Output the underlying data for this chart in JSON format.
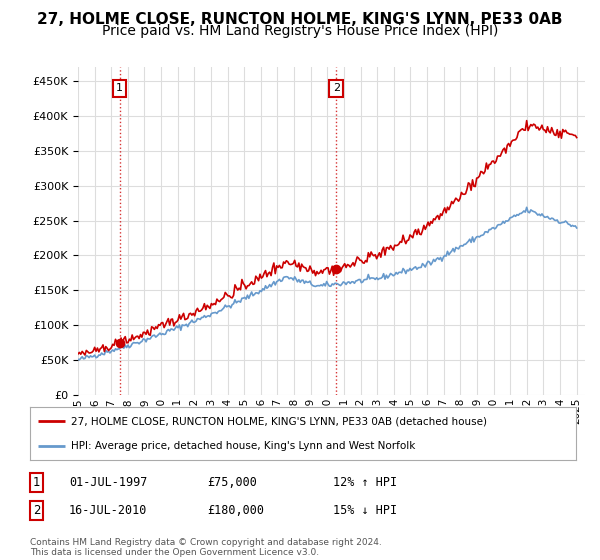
{
  "title": "27, HOLME CLOSE, RUNCTON HOLME, KING'S LYNN, PE33 0AB",
  "subtitle": "Price paid vs. HM Land Registry's House Price Index (HPI)",
  "ylim": [
    0,
    470000
  ],
  "yticks": [
    0,
    50000,
    100000,
    150000,
    200000,
    250000,
    300000,
    350000,
    400000,
    450000
  ],
  "sale1_date": 1997.5,
  "sale1_price": 75000,
  "sale1_label": "1",
  "sale2_date": 2010.54,
  "sale2_price": 180000,
  "sale2_label": "2",
  "line_color_property": "#cc0000",
  "line_color_hpi": "#6699cc",
  "legend_property": "27, HOLME CLOSE, RUNCTON HOLME, KING'S LYNN, PE33 0AB (detached house)",
  "legend_hpi": "HPI: Average price, detached house, King's Lynn and West Norfolk",
  "table_row1": [
    "1",
    "01-JUL-1997",
    "£75,000",
    "12% ↑ HPI"
  ],
  "table_row2": [
    "2",
    "16-JUL-2010",
    "£180,000",
    "15% ↓ HPI"
  ],
  "footnote": "Contains HM Land Registry data © Crown copyright and database right 2024.\nThis data is licensed under the Open Government Licence v3.0.",
  "background_color": "#ffffff",
  "grid_color": "#dddddd",
  "title_fontsize": 11,
  "subtitle_fontsize": 10
}
